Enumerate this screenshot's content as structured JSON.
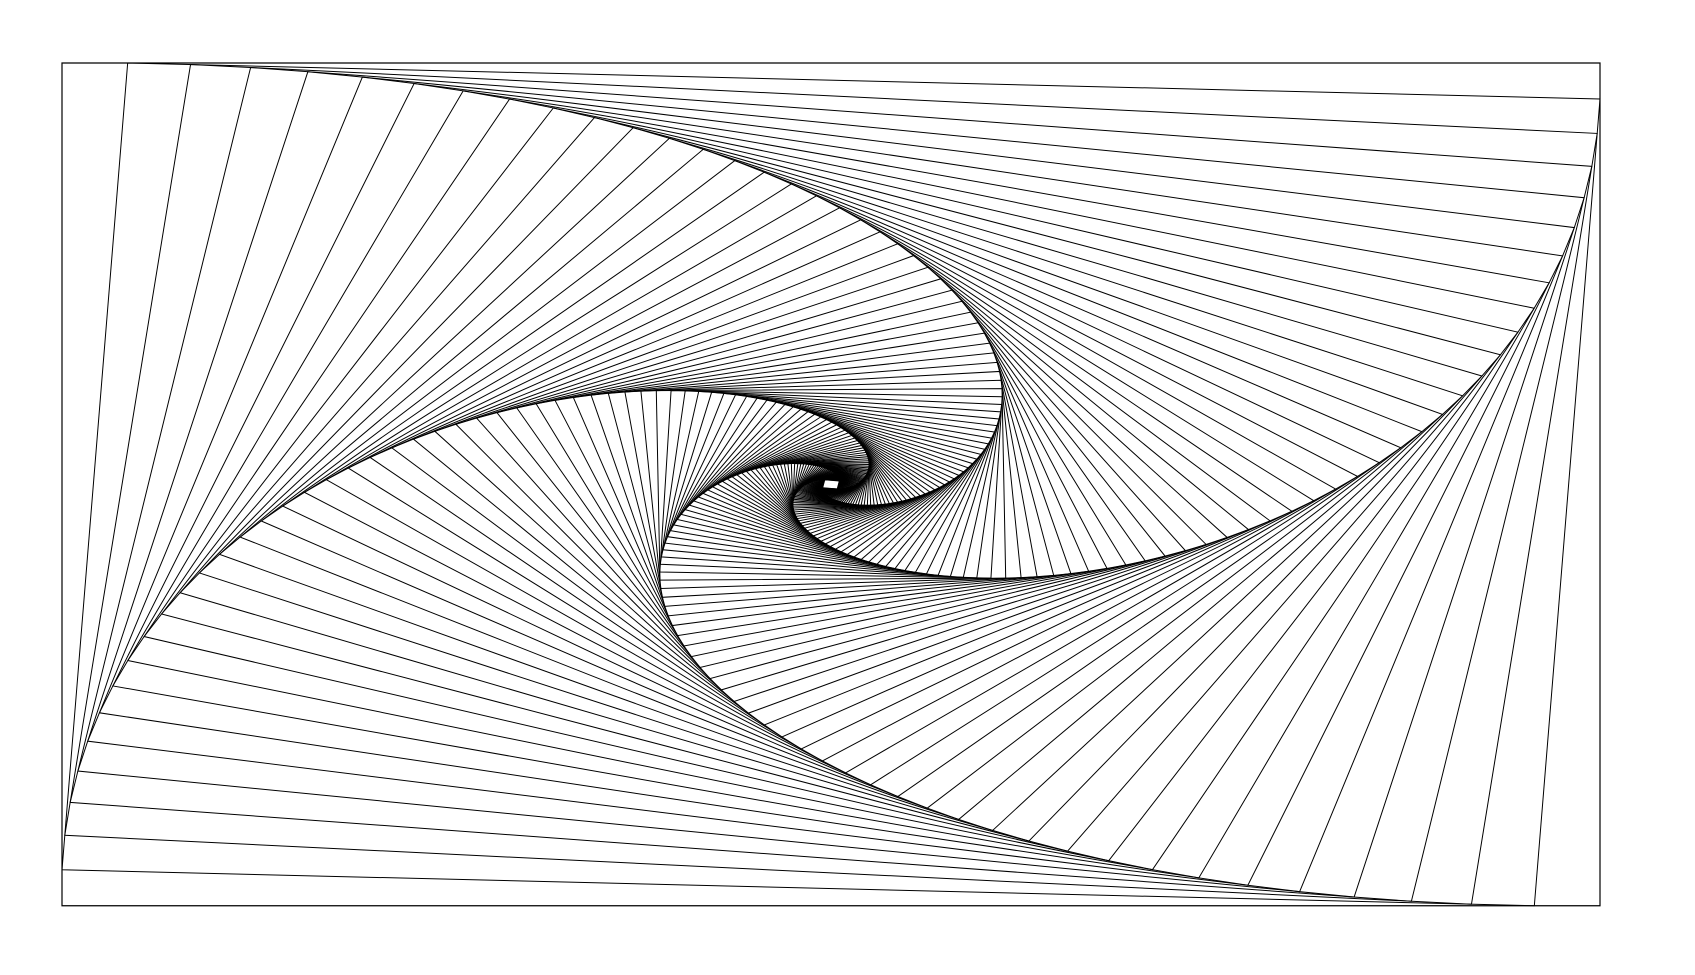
{
  "figure": {
    "kind": "nested rotating rectangles spiral (line art)",
    "stroke_color": "#000000",
    "background_color": "#ffffff",
    "aspect_ratio": 1.825,
    "rotation_fraction": 0.0427,
    "iterations": 110
  }
}
